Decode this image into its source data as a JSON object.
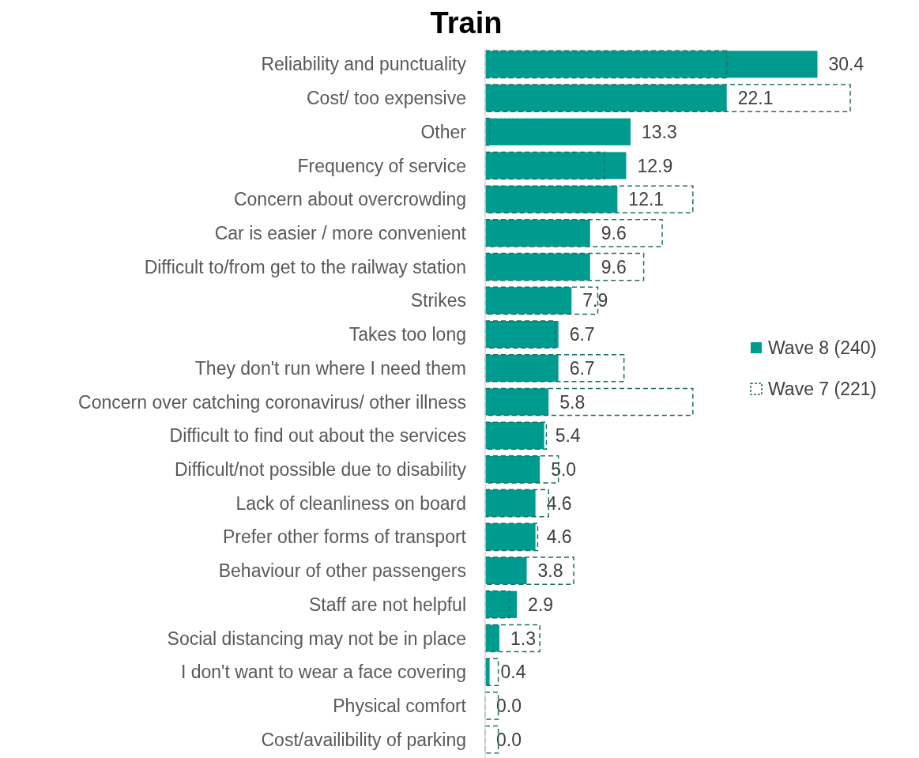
{
  "chart_data": {
    "type": "bar",
    "orientation": "horizontal",
    "title": "Train",
    "legend": "right",
    "categories": [
      "Reliability and punctuality",
      "Cost/ too expensive",
      "Other",
      "Frequency of service",
      "Concern about overcrowding",
      "Car is easier / more convenient",
      "Difficult to/from get to the railway station",
      "Strikes",
      "Takes too long",
      "They don't run where I need them",
      "Concern over catching coronavirus/ other illness",
      "Difficult to find out about the services",
      "Difficult/not possible due to disability",
      "Lack of cleanliness on board",
      "Prefer other forms of transport",
      "Behaviour of other passengers",
      "Staff are not helpful",
      "Social distancing may not be in place",
      "I don't want to wear a face covering",
      "Physical comfort",
      "Cost/availibility of parking"
    ],
    "series": [
      {
        "name": "Wave 8 (240)",
        "color": "#009b8f",
        "values": [
          30.4,
          22.1,
          13.3,
          12.9,
          12.1,
          9.6,
          9.6,
          7.9,
          6.7,
          6.7,
          5.8,
          5.4,
          5.0,
          4.6,
          4.6,
          3.8,
          2.9,
          1.3,
          0.4,
          0.0,
          0.0
        ],
        "value_labels": [
          "30.4",
          "22.1",
          "13.3",
          "12.9",
          "12.1",
          "9.6",
          "9.6",
          "7.9",
          "6.7",
          "6.7",
          "5.8",
          "5.4",
          "5.0",
          "4.6",
          "4.6",
          "3.8",
          "2.9",
          "1.3",
          "0.4",
          "0.0",
          "0.0"
        ]
      },
      {
        "name": "Wave 7 (221)",
        "color": "#1e6f66",
        "line_style": "dashed",
        "values": [
          22.1,
          33.4,
          0.4,
          10.9,
          19.0,
          16.2,
          14.5,
          10.3,
          6.4,
          12.7,
          19.0,
          5.6,
          6.7,
          5.8,
          4.8,
          8.1,
          2.2,
          5.0,
          1.2,
          1.2,
          1.2
        ]
      }
    ]
  }
}
